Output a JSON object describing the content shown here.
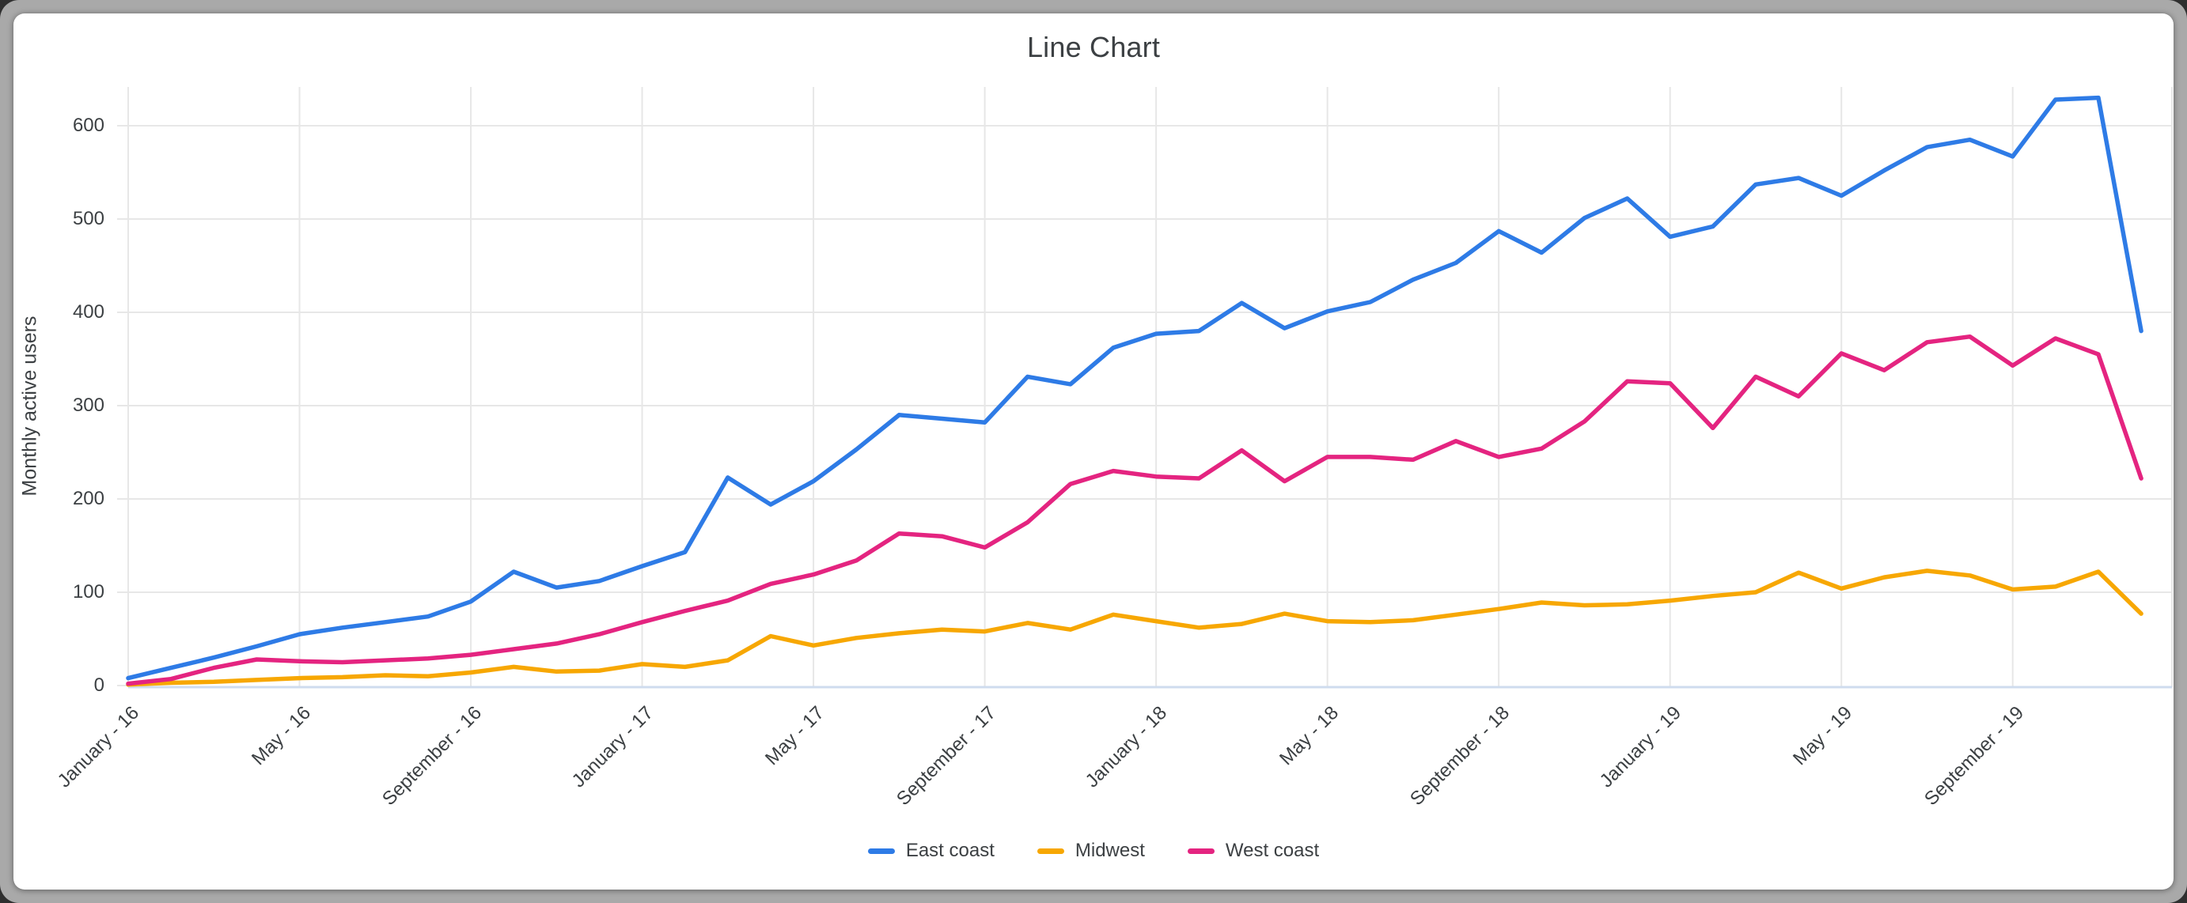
{
  "window": {
    "frame_color": "#a9a9a9",
    "card_color": "#ffffff"
  },
  "chart": {
    "title": "Line Chart",
    "y_axis_title": "Monthly active users",
    "colors": {
      "grid": "#e7e7e7",
      "baseline": "#cfdcee",
      "text": "#3c4043"
    },
    "legend": {
      "items": [
        {
          "label": "East coast",
          "color": "#2E7BE6"
        },
        {
          "label": "Midwest",
          "color": "#F7A702"
        },
        {
          "label": "West coast",
          "color": "#E42480"
        }
      ]
    }
  },
  "chart_data": {
    "type": "line",
    "title": "Line Chart",
    "xlabel": "",
    "ylabel": "Monthly active users",
    "ylim": [
      0,
      640
    ],
    "grid": true,
    "legend_position": "bottom",
    "y_ticks": [
      0,
      100,
      200,
      300,
      400,
      500,
      600
    ],
    "x_tick_labels": [
      "January - 16",
      "May - 16",
      "September - 16",
      "January - 17",
      "May - 17",
      "September - 17",
      "January - 18",
      "May - 18",
      "September - 18",
      "January - 19",
      "May - 19",
      "September - 19"
    ],
    "x_ticks_every_n_months": 4,
    "categories": [
      "January - 16",
      "February - 16",
      "March - 16",
      "April - 16",
      "May - 16",
      "June - 16",
      "July - 16",
      "August - 16",
      "September - 16",
      "October - 16",
      "November - 16",
      "December - 16",
      "January - 17",
      "February - 17",
      "March - 17",
      "April - 17",
      "May - 17",
      "June - 17",
      "July - 17",
      "August - 17",
      "September - 17",
      "October - 17",
      "November - 17",
      "December - 17",
      "January - 18",
      "February - 18",
      "March - 18",
      "April - 18",
      "May - 18",
      "June - 18",
      "July - 18",
      "August - 18",
      "September - 18",
      "October - 18",
      "November - 18",
      "December - 18",
      "January - 19",
      "February - 19",
      "March - 19",
      "April - 19",
      "May - 19",
      "June - 19",
      "July - 19",
      "August - 19",
      "September - 19",
      "October - 19",
      "November - 19",
      "December - 19"
    ],
    "series": [
      {
        "name": "East coast",
        "color": "#2E7BE6",
        "values": [
          8,
          19,
          30,
          42,
          55,
          62,
          68,
          74,
          90,
          122,
          105,
          112,
          128,
          143,
          223,
          194,
          219,
          253,
          290,
          286,
          282,
          331,
          323,
          362,
          377,
          380,
          410,
          383,
          401,
          411,
          435,
          453,
          487,
          464,
          501,
          522,
          481,
          492,
          537,
          544,
          525,
          552,
          577,
          585,
          567,
          628,
          630,
          380
        ]
      },
      {
        "name": "Midwest",
        "color": "#F7A702",
        "values": [
          1,
          3,
          4,
          6,
          8,
          9,
          11,
          10,
          14,
          20,
          15,
          16,
          23,
          20,
          27,
          53,
          43,
          51,
          56,
          60,
          58,
          67,
          60,
          76,
          69,
          62,
          66,
          77,
          69,
          68,
          70,
          76,
          82,
          89,
          86,
          87,
          91,
          96,
          100,
          121,
          104,
          116,
          123,
          118,
          103,
          106,
          122,
          77
        ]
      },
      {
        "name": "West coast",
        "color": "#E42480",
        "values": [
          2,
          7,
          19,
          28,
          26,
          25,
          27,
          29,
          33,
          39,
          45,
          55,
          68,
          80,
          91,
          109,
          119,
          134,
          163,
          160,
          148,
          175,
          216,
          230,
          224,
          222,
          252,
          219,
          245,
          245,
          242,
          262,
          245,
          254,
          283,
          326,
          324,
          276,
          331,
          310,
          356,
          338,
          368,
          374,
          343,
          372,
          355,
          222
        ]
      }
    ]
  }
}
